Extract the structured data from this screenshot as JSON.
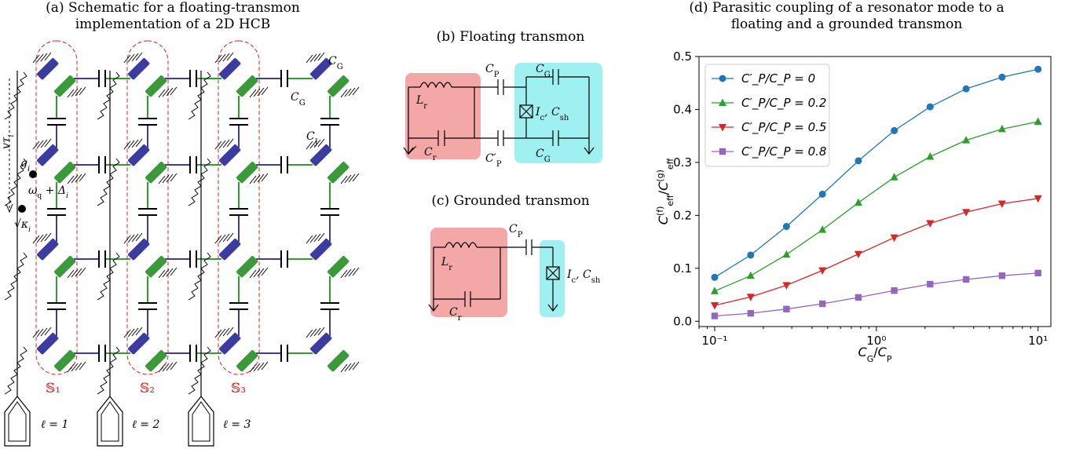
{
  "panel_a": {
    "caption_line1": "(a) Schematic for a floating-transmon",
    "caption_line2": "implementation of a 2D HCB",
    "labels": {
      "cg_top": "C_G",
      "cg_mid": "C_G",
      "cj": "C_J",
      "v_tau": "vτ_i",
      "g_i": "g_i",
      "omega": "ω_q + Δ_i",
      "kappa": "√κ_i"
    },
    "sets": [
      "𝕊₁",
      "𝕊₂",
      "𝕊₃"
    ],
    "ells": [
      "ℓ = 1",
      "ℓ = 2",
      "ℓ = 3"
    ]
  },
  "panel_b": {
    "caption": "(b) Floating transmon",
    "labels": {
      "cp": "C_P",
      "cp_prime": "C′_P",
      "lr": "L_r",
      "cr": "C_r",
      "cg1": "C_G",
      "cg2": "C_G",
      "junction": "I_c, C_sh"
    }
  },
  "panel_c": {
    "caption": "(c) Grounded transmon",
    "labels": {
      "cp": "C_P",
      "lr": "L_r",
      "cr": "C_r",
      "junction": "I_c, C_sh"
    }
  },
  "panel_d": {
    "caption_line1": "(d) Parasitic coupling of a resonator mode to a",
    "caption_line2": "floating and a grounded transmon"
  },
  "colors": {
    "blue": "#1f77b4",
    "green": "#2ca02c",
    "red": "#d62728",
    "purple": "#9467bd",
    "transmon_blue": "#3c3ca0",
    "transmon_green": "#3a9a3a",
    "resonator_box": "#f4a7a7",
    "transmon_box": "#9ff0f0",
    "set_outline": "#e02020"
  },
  "chart_data": {
    "type": "line",
    "xscale": "log",
    "xlim": [
      0.08,
      12
    ],
    "ylim": [
      -0.01,
      0.5
    ],
    "xlabel": "C_G/C_P",
    "ylabel": "C_eff^(f)/C_eff^(g)",
    "x_ticks": [
      "10⁻¹",
      "10⁰",
      "10¹"
    ],
    "y_ticks": [
      "0.0",
      "0.1",
      "0.2",
      "0.3",
      "0.4",
      "0.5"
    ],
    "legend_position": "top-left",
    "x": [
      0.1,
      0.167,
      0.278,
      0.464,
      0.774,
      1.29,
      2.15,
      3.59,
      5.99,
      10.0
    ],
    "series": [
      {
        "name": "C′_P/C_P = 0",
        "marker": "circle",
        "color": "#1f77b4",
        "values": [
          0.083,
          0.125,
          0.179,
          0.24,
          0.303,
          0.36,
          0.405,
          0.439,
          0.461,
          0.476
        ]
      },
      {
        "name": "C′_P/C_P = 0.2",
        "marker": "triangle",
        "color": "#2ca02c",
        "values": [
          0.057,
          0.086,
          0.126,
          0.173,
          0.224,
          0.272,
          0.311,
          0.342,
          0.363,
          0.377
        ]
      },
      {
        "name": "C′_P/C_P = 0.5",
        "marker": "tri-down",
        "color": "#d62728",
        "values": [
          0.03,
          0.046,
          0.068,
          0.096,
          0.127,
          0.158,
          0.185,
          0.206,
          0.222,
          0.232
        ]
      },
      {
        "name": "C′_P/C_P = 0.8",
        "marker": "square",
        "color": "#9467bd",
        "values": [
          0.01,
          0.015,
          0.023,
          0.033,
          0.045,
          0.058,
          0.07,
          0.079,
          0.086,
          0.091
        ]
      }
    ]
  }
}
